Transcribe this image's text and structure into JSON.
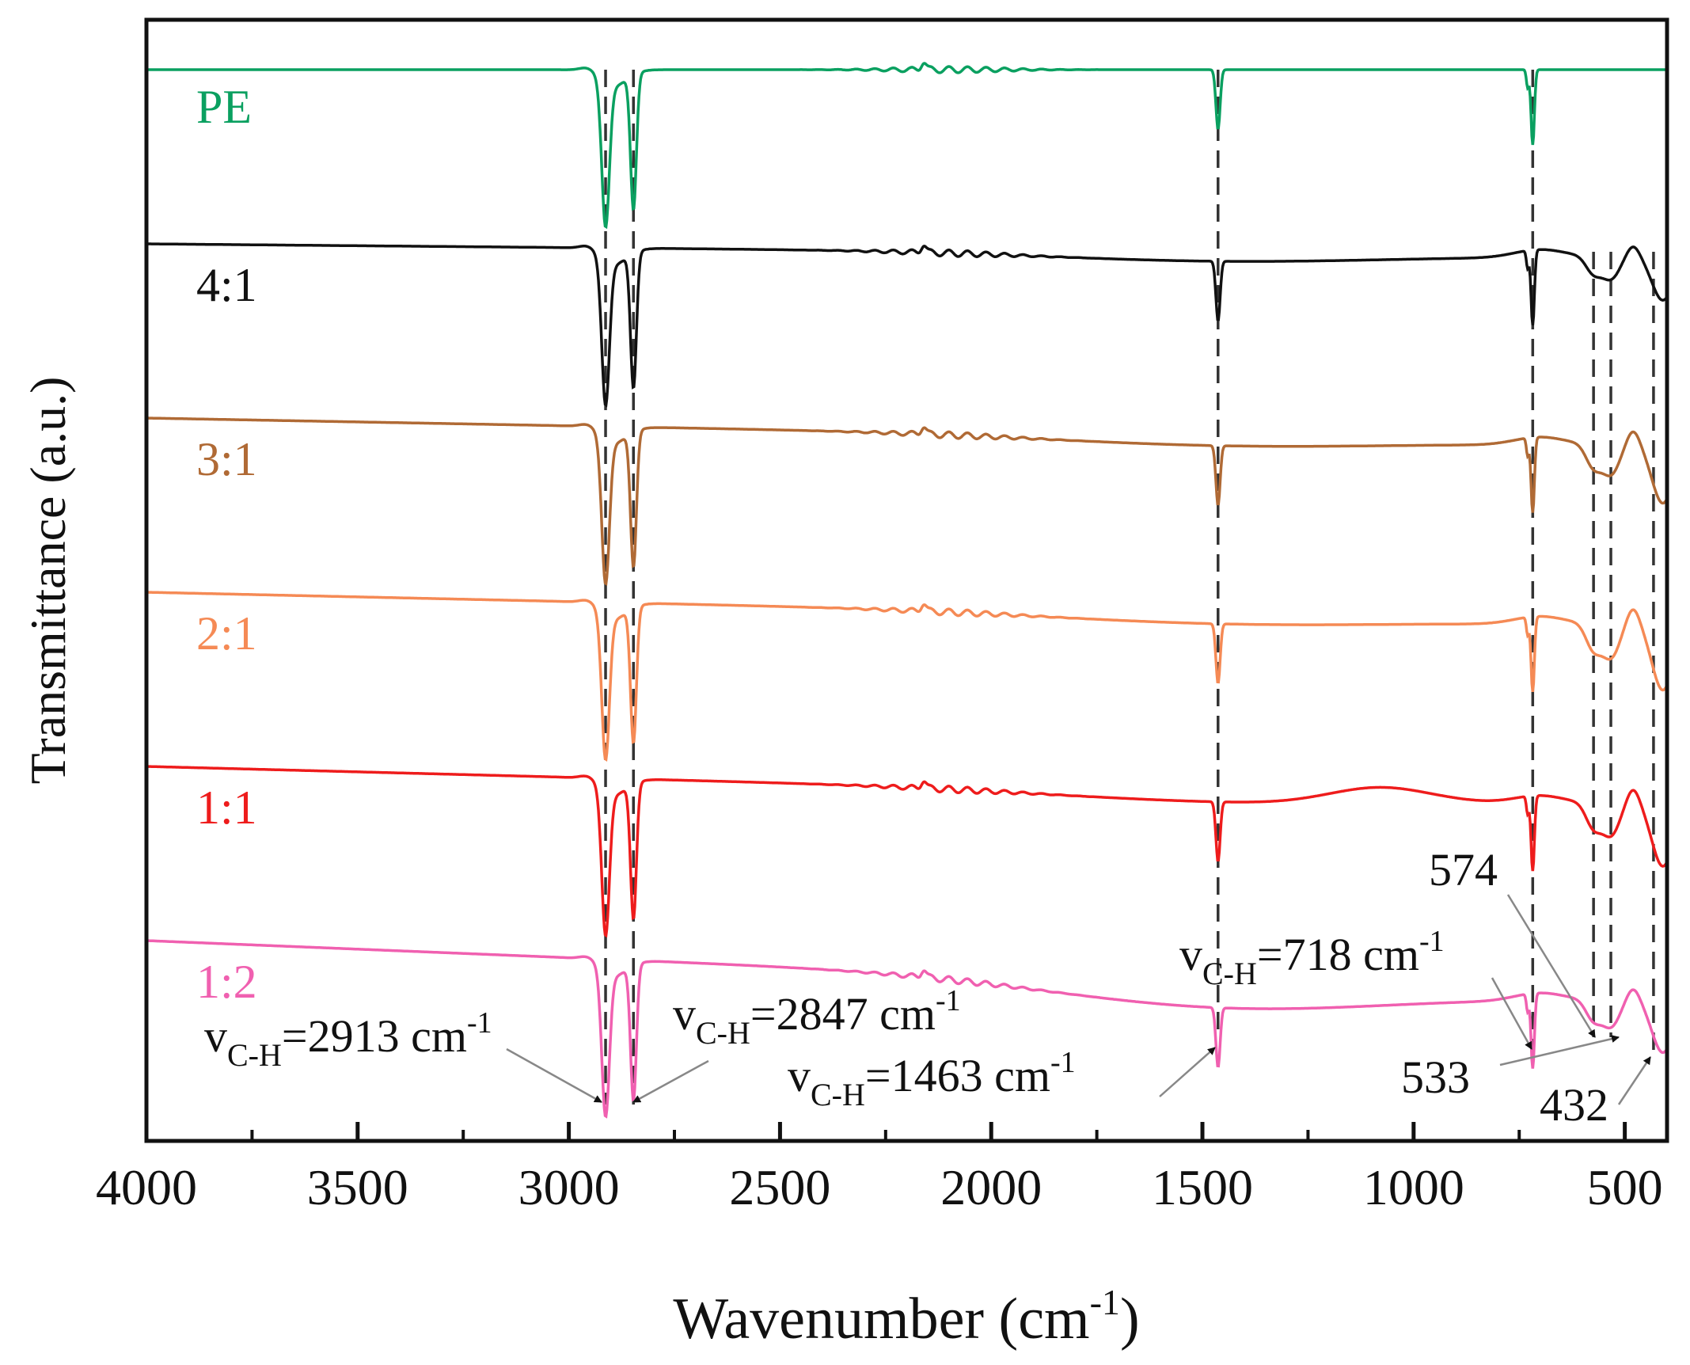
{
  "chart_data": {
    "type": "line",
    "xlabel_main": "Wavenumber (cm",
    "xlabel_sup": "-1",
    "xlabel_close": ")",
    "ylabel": "Transmittance (a.u.)",
    "xlim": [
      4000,
      400
    ],
    "xticks": [
      {
        "value": 4000,
        "label": "4000"
      },
      {
        "value": 3500,
        "label": "3500"
      },
      {
        "value": 3000,
        "label": "3000"
      },
      {
        "value": 2500,
        "label": "2500"
      },
      {
        "value": 2000,
        "label": "2000"
      },
      {
        "value": 1500,
        "label": "1500"
      },
      {
        "value": 1000,
        "label": "1000"
      },
      {
        "value": 500,
        "label": "500"
      }
    ],
    "grid": false,
    "legend": "series labels printed at left above each curve",
    "series": [
      {
        "name": "PE",
        "color": "#0aa060"
      },
      {
        "name": "4:1",
        "color": "#111111"
      },
      {
        "name": "3:1",
        "color": "#b06a35"
      },
      {
        "name": "2:1",
        "color": "#f58a55"
      },
      {
        "name": "1:1",
        "color": "#ee1c1c"
      },
      {
        "name": "1:2",
        "color": "#f060b0"
      }
    ],
    "reference_lines": [
      2913,
      2847,
      1463,
      718,
      574,
      533,
      432
    ],
    "annotations": [
      {
        "label": "v",
        "sub": "C-H",
        "rest": "=2913 cm",
        "sup": "-1",
        "x": 2913
      },
      {
        "label": "v",
        "sub": "C-H",
        "rest": "=2847 cm",
        "sup": "-1",
        "x": 2847
      },
      {
        "label": "v",
        "sub": "C-H",
        "rest": "=1463 cm",
        "sup": "-1",
        "x": 1463
      },
      {
        "label": "v",
        "sub": "C-H",
        "rest": "=718 cm",
        "sup": "-1",
        "x": 718
      },
      {
        "label": "574",
        "x": 574
      },
      {
        "label": "533",
        "x": 533
      },
      {
        "label": "432",
        "x": 432
      }
    ]
  }
}
